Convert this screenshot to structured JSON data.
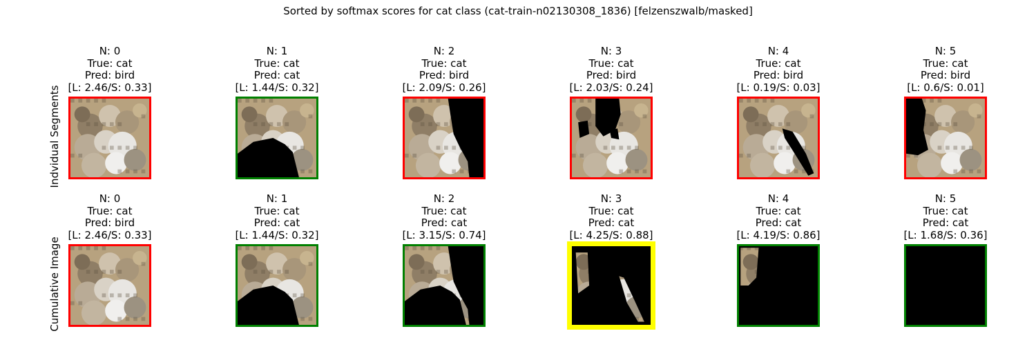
{
  "chart_data": {
    "type": "image-grid",
    "title": "Sorted by softmax scores for cat class (cat-train-n02130308_1836) [felzenszwalb/masked]",
    "rows": [
      {
        "label": "Indvidual Segments",
        "panels": [
          {
            "n": "N: 0",
            "true_label": "True: cat",
            "pred": "Pred: bird",
            "scores": "[L: 2.46/S: 0.33]",
            "L": 2.46,
            "S": 0.33,
            "border": "#ff0000"
          },
          {
            "n": "N: 1",
            "true_label": "True: cat",
            "pred": "Pred: cat",
            "scores": "[L: 1.44/S: 0.32]",
            "L": 1.44,
            "S": 0.32,
            "border": "#008000"
          },
          {
            "n": "N: 2",
            "true_label": "True: cat",
            "pred": "Pred: bird",
            "scores": "[L: 2.09/S: 0.26]",
            "L": 2.09,
            "S": 0.26,
            "border": "#ff0000"
          },
          {
            "n": "N: 3",
            "true_label": "True: cat",
            "pred": "Pred: bird",
            "scores": "[L: 2.03/S: 0.24]",
            "L": 2.03,
            "S": 0.24,
            "border": "#ff0000"
          },
          {
            "n": "N: 4",
            "true_label": "True: cat",
            "pred": "Pred: bird",
            "scores": "[L: 0.19/S: 0.03]",
            "L": 0.19,
            "S": 0.03,
            "border": "#ff0000"
          },
          {
            "n": "N: 5",
            "true_label": "True: cat",
            "pred": "Pred: bird",
            "scores": "[L: 0.6/S: 0.01]",
            "L": 0.6,
            "S": 0.01,
            "border": "#ff0000"
          }
        ]
      },
      {
        "label": "Cumulative Image",
        "panels": [
          {
            "n": "N: 0",
            "true_label": "True: cat",
            "pred": "Pred: bird",
            "scores": "[L: 2.46/S: 0.33]",
            "L": 2.46,
            "S": 0.33,
            "border": "#ff0000"
          },
          {
            "n": "N: 1",
            "true_label": "True: cat",
            "pred": "Pred: cat",
            "scores": "[L: 1.44/S: 0.32]",
            "L": 1.44,
            "S": 0.32,
            "border": "#008000"
          },
          {
            "n": "N: 2",
            "true_label": "True: cat",
            "pred": "Pred: cat",
            "scores": "[L: 3.15/S: 0.74]",
            "L": 3.15,
            "S": 0.74,
            "border": "#008000"
          },
          {
            "n": "N: 3",
            "true_label": "True: cat",
            "pred": "Pred: cat",
            "scores": "[L: 4.25/S: 0.88]",
            "L": 4.25,
            "S": 0.88,
            "border": "#ffff00"
          },
          {
            "n": "N: 4",
            "true_label": "True: cat",
            "pred": "Pred: cat",
            "scores": "[L: 4.19/S: 0.86]",
            "L": 4.19,
            "S": 0.86,
            "border": "#008000"
          },
          {
            "n": "N: 5",
            "true_label": "True: cat",
            "pred": "Pred: cat",
            "scores": "[L: 1.68/S: 0.36]",
            "L": 1.68,
            "S": 0.36,
            "border": "#008000"
          }
        ]
      }
    ],
    "colors": {
      "incorrect": "#ff0000",
      "correct": "#008000",
      "best": "#ffff00",
      "mask": "#000000"
    }
  }
}
